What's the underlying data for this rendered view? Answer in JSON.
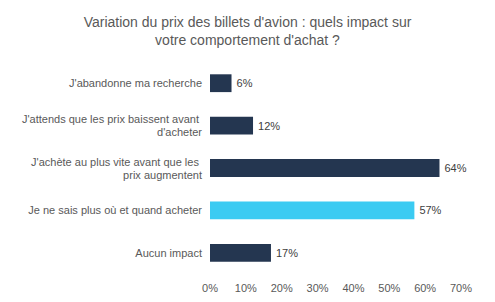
{
  "chart_data": {
    "type": "bar",
    "title": "Variation du prix des billets d'avion : quels impact sur\nvotre comportement d'achat ?",
    "orientation": "horizontal",
    "categories": [
      "J'abandonne ma recherche",
      "J'attends que les prix baissent avant d'acheter",
      "J'achète au plus vite avant que les prix augmentent",
      "Je ne sais plus où et quand acheter",
      "Aucun impact"
    ],
    "values": [
      6,
      12,
      64,
      57,
      17
    ],
    "value_labels": [
      "6%",
      "12%",
      "64%",
      "57%",
      "17%"
    ],
    "colors": [
      "#243650",
      "#243650",
      "#243650",
      "#3bcbf2",
      "#243650"
    ],
    "xlim": [
      0,
      70
    ],
    "xticks": [
      {
        "value": 0,
        "label": "0%"
      },
      {
        "value": 10,
        "label": "10%"
      },
      {
        "value": 20,
        "label": "20%"
      },
      {
        "value": 30,
        "label": "30%"
      },
      {
        "value": 40,
        "label": "40%"
      },
      {
        "value": 50,
        "label": "50%"
      },
      {
        "value": 60,
        "label": "60%"
      },
      {
        "value": 70,
        "label": "70%"
      }
    ],
    "grid": false,
    "data_labels": true
  }
}
